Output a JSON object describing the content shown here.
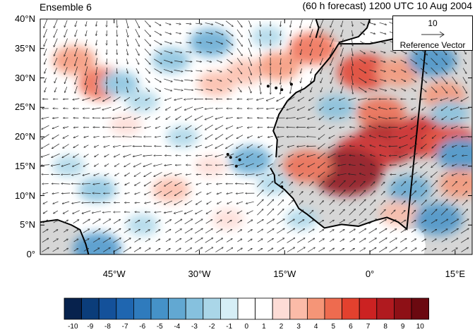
{
  "title_left": "Ensemble 6",
  "title_right": "(60 h forecast) 1200 UTC 10 Aug 2004",
  "map": {
    "lat_range": [
      0,
      40
    ],
    "lon_range": [
      -58,
      18
    ],
    "y_ticks": [
      {
        "lat": 40,
        "label": "40°N"
      },
      {
        "lat": 35,
        "label": "35°N"
      },
      {
        "lat": 30,
        "label": "30°N"
      },
      {
        "lat": 25,
        "label": "25°N"
      },
      {
        "lat": 20,
        "label": "20°N"
      },
      {
        "lat": 15,
        "label": "15°N"
      },
      {
        "lat": 10,
        "label": "10°N"
      },
      {
        "lat": 5,
        "label": "5°N"
      },
      {
        "lat": 0,
        "label": "0°"
      }
    ],
    "x_ticks": [
      {
        "lon": -45,
        "label": "45°W"
      },
      {
        "lon": -30,
        "label": "30°W"
      },
      {
        "lon": -15,
        "label": "15°W"
      },
      {
        "lon": 0,
        "label": "0°"
      },
      {
        "lon": 15,
        "label": "15°E"
      }
    ],
    "land_color": "#d6d6d6",
    "anomalies": [
      {
        "lon": -52,
        "lat": 33,
        "value": 4
      },
      {
        "lon": -47,
        "lat": 29,
        "value": 5
      },
      {
        "lon": -44,
        "lat": 29,
        "value": -3
      },
      {
        "lon": -40,
        "lat": 26,
        "value": -2
      },
      {
        "lon": -43,
        "lat": 22,
        "value": 2
      },
      {
        "lon": -35,
        "lat": 33,
        "value": -3
      },
      {
        "lon": -28,
        "lat": 36,
        "value": -4
      },
      {
        "lon": -27,
        "lat": 29,
        "value": 3
      },
      {
        "lon": -22,
        "lat": 31,
        "value": 3
      },
      {
        "lon": -16,
        "lat": 32,
        "value": 4
      },
      {
        "lon": -10,
        "lat": 35,
        "value": 5
      },
      {
        "lon": -18,
        "lat": 37,
        "value": -2
      },
      {
        "lon": -1,
        "lat": 31,
        "value": 6
      },
      {
        "lon": 5,
        "lat": 31,
        "value": 4
      },
      {
        "lon": 11,
        "lat": 33,
        "value": -5
      },
      {
        "lon": 13,
        "lat": 27,
        "value": 4
      },
      {
        "lon": -6,
        "lat": 25,
        "value": -3
      },
      {
        "lon": 2,
        "lat": 24,
        "value": 5
      },
      {
        "lon": 3,
        "lat": 19,
        "value": 8
      },
      {
        "lon": -1,
        "lat": 17,
        "value": 7
      },
      {
        "lon": -4,
        "lat": 14,
        "value": 9
      },
      {
        "lon": -11,
        "lat": 15,
        "value": 5
      },
      {
        "lon": 9,
        "lat": 20,
        "value": 7
      },
      {
        "lon": 14,
        "lat": 19,
        "value": 6
      },
      {
        "lon": 16,
        "lat": 17,
        "value": -5
      },
      {
        "lon": 16,
        "lat": 12,
        "value": 4
      },
      {
        "lon": 7,
        "lat": 11,
        "value": -4
      },
      {
        "lon": 5,
        "lat": 7,
        "value": 3
      },
      {
        "lon": 12,
        "lat": 6,
        "value": -5
      },
      {
        "lon": -21,
        "lat": 16,
        "value": -4
      },
      {
        "lon": -17,
        "lat": 12,
        "value": -2
      },
      {
        "lon": -28,
        "lat": 15,
        "value": 2
      },
      {
        "lon": -35,
        "lat": 11,
        "value": 3
      },
      {
        "lon": -48,
        "lat": 11,
        "value": -3
      },
      {
        "lon": -53,
        "lat": 15,
        "value": -2
      },
      {
        "lon": -40,
        "lat": 5,
        "value": -2
      },
      {
        "lon": -25,
        "lat": 6,
        "value": 2
      },
      {
        "lon": -12,
        "lat": 6,
        "value": -2
      },
      {
        "lon": -48,
        "lat": 1,
        "value": -5
      },
      {
        "lon": -33,
        "lat": 20,
        "value": -2
      },
      {
        "lon": 14,
        "lat": 24,
        "value": -3
      }
    ],
    "vector_grid": {
      "lon_step": 1.8,
      "lat_step": 1.6
    }
  },
  "reference_vector": {
    "magnitude": "10",
    "label": "Reference Vector"
  },
  "colorbar": {
    "levels": [
      "-10",
      "-9",
      "-8",
      "-7",
      "-6",
      "-5",
      "-4",
      "-3",
      "-2",
      "-1",
      "0",
      "1",
      "2",
      "3",
      "4",
      "5",
      "6",
      "7",
      "8",
      "9",
      "10"
    ],
    "colors": [
      "#07224d",
      "#0b3d7a",
      "#14519a",
      "#1f66b0",
      "#2f7bbd",
      "#4592c8",
      "#62a8d2",
      "#86c1de",
      "#aad6e8",
      "#d6eef6",
      "#ffffff",
      "#ffffff",
      "#fddcd6",
      "#fbbba8",
      "#f59577",
      "#ee6b4f",
      "#e3412e",
      "#cc2222",
      "#b01a1f",
      "#8e1016",
      "#6b0910"
    ]
  }
}
